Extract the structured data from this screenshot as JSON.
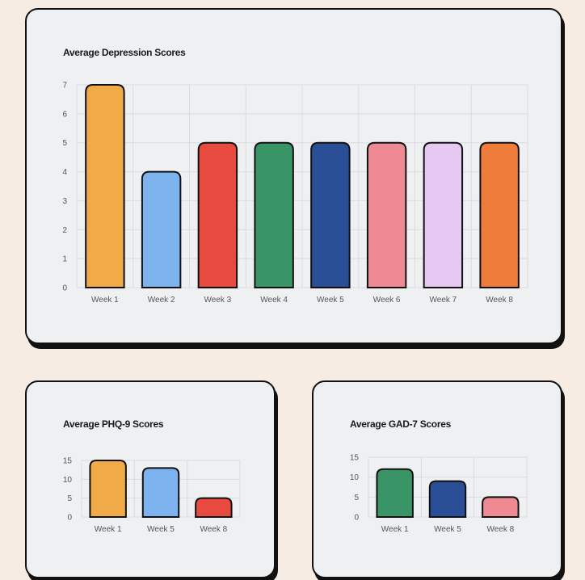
{
  "chart_data": [
    {
      "type": "bar",
      "title": "Average Depression Scores",
      "categories": [
        "Week 1",
        "Week 2",
        "Week 3",
        "Week 4",
        "Week 5",
        "Week 6",
        "Week 7",
        "Week 8"
      ],
      "values": [
        7,
        4,
        5,
        5,
        5,
        5,
        5,
        5
      ],
      "colors": [
        "#f0ab48",
        "#7db3ef",
        "#e84a40",
        "#3a9566",
        "#2b4f96",
        "#ee8a93",
        "#e6c8f3",
        "#f07c3c"
      ],
      "ylim": [
        0,
        7
      ],
      "yticks": [
        0,
        1,
        2,
        3,
        4,
        5,
        6,
        7
      ],
      "grid": true,
      "xlabel": "",
      "ylabel": ""
    },
    {
      "type": "bar",
      "title": "Average PHQ-9 Scores",
      "categories": [
        "Week 1",
        "Week 5",
        "Week 8"
      ],
      "values": [
        15,
        13,
        5
      ],
      "colors": [
        "#f0ab48",
        "#7db3ef",
        "#e84a40"
      ],
      "ylim": [
        0,
        15
      ],
      "yticks": [
        0,
        5,
        10,
        15
      ],
      "grid": true,
      "xlabel": "",
      "ylabel": ""
    },
    {
      "type": "bar",
      "title": "Average GAD-7 Scores",
      "categories": [
        "Week 1",
        "Week 5",
        "Week 8"
      ],
      "values": [
        12,
        9,
        5
      ],
      "colors": [
        "#3a9566",
        "#2b4f96",
        "#ee8a93"
      ],
      "ylim": [
        0,
        15
      ],
      "yticks": [
        0,
        5,
        10,
        15
      ],
      "grid": true,
      "xlabel": "",
      "ylabel": ""
    }
  ]
}
